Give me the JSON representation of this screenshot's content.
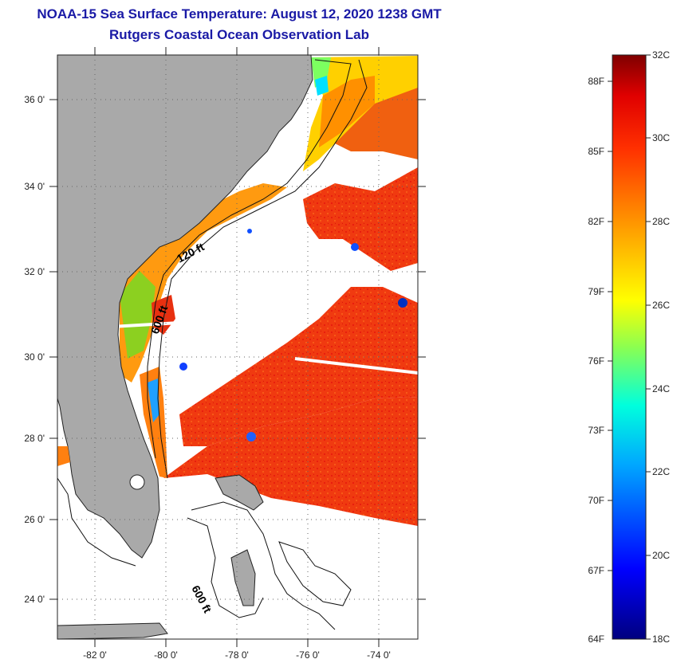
{
  "header": {
    "title_line1": "NOAA-15 Sea Surface Temperature:  August 12, 2020 1238 GMT",
    "title_line2": "Rutgers Coastal Ocean Observation Lab"
  },
  "map": {
    "lon_range": [
      -83,
      -73
    ],
    "lat_range": [
      23,
      37
    ],
    "lat_ticks": [
      "36 0'",
      "34 0'",
      "32 0'",
      "30 0'",
      "28 0'",
      "26 0'",
      "24 0'"
    ],
    "lon_ticks": [
      "-82 0'",
      "-80 0'",
      "-78 0'",
      "-76 0'",
      "-74 0'"
    ],
    "contour_labels": [
      "120 ft",
      "600 ft",
      "600 ft"
    ],
    "colors": {
      "land": "#a9a9a9",
      "cloud": "#ffffff",
      "warm_sst": "#f03a10",
      "grid": "#666666"
    }
  },
  "colorbar": {
    "celsius_labels": [
      "32C",
      "30C",
      "28C",
      "26C",
      "24C",
      "22C",
      "20C",
      "18C"
    ],
    "fahrenheit_labels": [
      "88F",
      "85F",
      "82F",
      "79F",
      "76F",
      "73F",
      "70F",
      "67F",
      "64F"
    ],
    "range_celsius": [
      18,
      32
    ]
  }
}
